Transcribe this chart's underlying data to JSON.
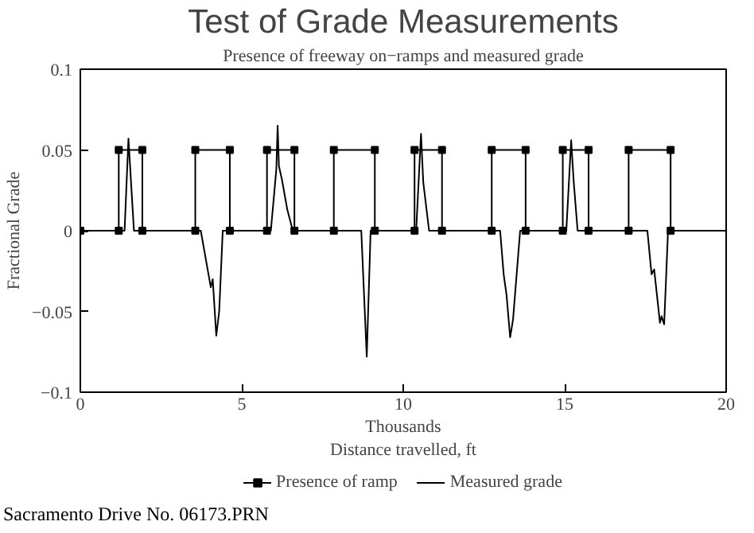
{
  "chart_data": {
    "type": "line",
    "title": "Test of Grade Measurements",
    "subtitle": "Presence of freeway on−ramps and measured grade",
    "xlabel": "Thousands\nDistance travelled, ft",
    "ylabel": "Fractional Grade",
    "annotations": [
      "Sacramento Drive No. 06173.PRN"
    ],
    "xlim": [
      0,
      20
    ],
    "ylim": [
      -0.1,
      0.1
    ],
    "xticks": [
      0,
      5,
      10,
      15,
      20
    ],
    "yticks": [
      -0.1,
      -0.05,
      0,
      0.05,
      0.1
    ],
    "grid": false,
    "legend": "bottom",
    "line_style": "solid",
    "series": [
      {
        "name": "Presence of ramp",
        "color": "#000000",
        "marker": "square",
        "x": [
          0,
          1.19,
          1.19,
          1.92,
          1.92,
          3.56,
          3.56,
          4.63,
          4.63,
          5.78,
          5.78,
          6.63,
          6.63,
          7.85,
          7.85,
          9.12,
          9.12,
          10.35,
          10.35,
          11.2,
          11.2,
          12.74,
          12.74,
          13.79,
          13.79,
          14.94,
          14.94,
          15.74,
          15.74,
          16.98,
          16.98,
          18.28,
          18.28
        ],
        "values": [
          0,
          0,
          0.05,
          0.05,
          0,
          0,
          0.05,
          0.05,
          0,
          0,
          0.05,
          0.05,
          0,
          0,
          0.05,
          0.05,
          0,
          0,
          0.05,
          0.05,
          0,
          0,
          0.05,
          0.05,
          0,
          0,
          0.05,
          0.05,
          0,
          0,
          0.05,
          0.05,
          0
        ]
      },
      {
        "name": "Measured grade",
        "color": "#000000",
        "marker": "none",
        "x": [
          0,
          1.37,
          1.49,
          1.66,
          3.73,
          4.04,
          4.1,
          4.21,
          4.3,
          4.41,
          5.9,
          6.07,
          6.11,
          6.15,
          6.24,
          6.41,
          6.58,
          8.7,
          8.87,
          8.99,
          10.4,
          10.55,
          10.62,
          10.8,
          13.0,
          13.11,
          13.2,
          13.31,
          13.4,
          13.62,
          15.05,
          15.2,
          15.28,
          15.4,
          17.56,
          17.69,
          17.77,
          17.95,
          18.0,
          18.08,
          18.2,
          20
        ],
        "values": [
          0,
          0,
          0.057,
          0,
          0,
          -0.035,
          -0.03,
          -0.065,
          -0.05,
          0,
          0,
          0.038,
          0.065,
          0.04,
          0.032,
          0.013,
          0,
          0,
          -0.078,
          0,
          0,
          0.06,
          0.03,
          0,
          0,
          -0.027,
          -0.04,
          -0.066,
          -0.055,
          0,
          0,
          0.056,
          0.03,
          0,
          0,
          -0.027,
          -0.024,
          -0.057,
          -0.053,
          -0.058,
          0,
          0
        ]
      }
    ]
  }
}
